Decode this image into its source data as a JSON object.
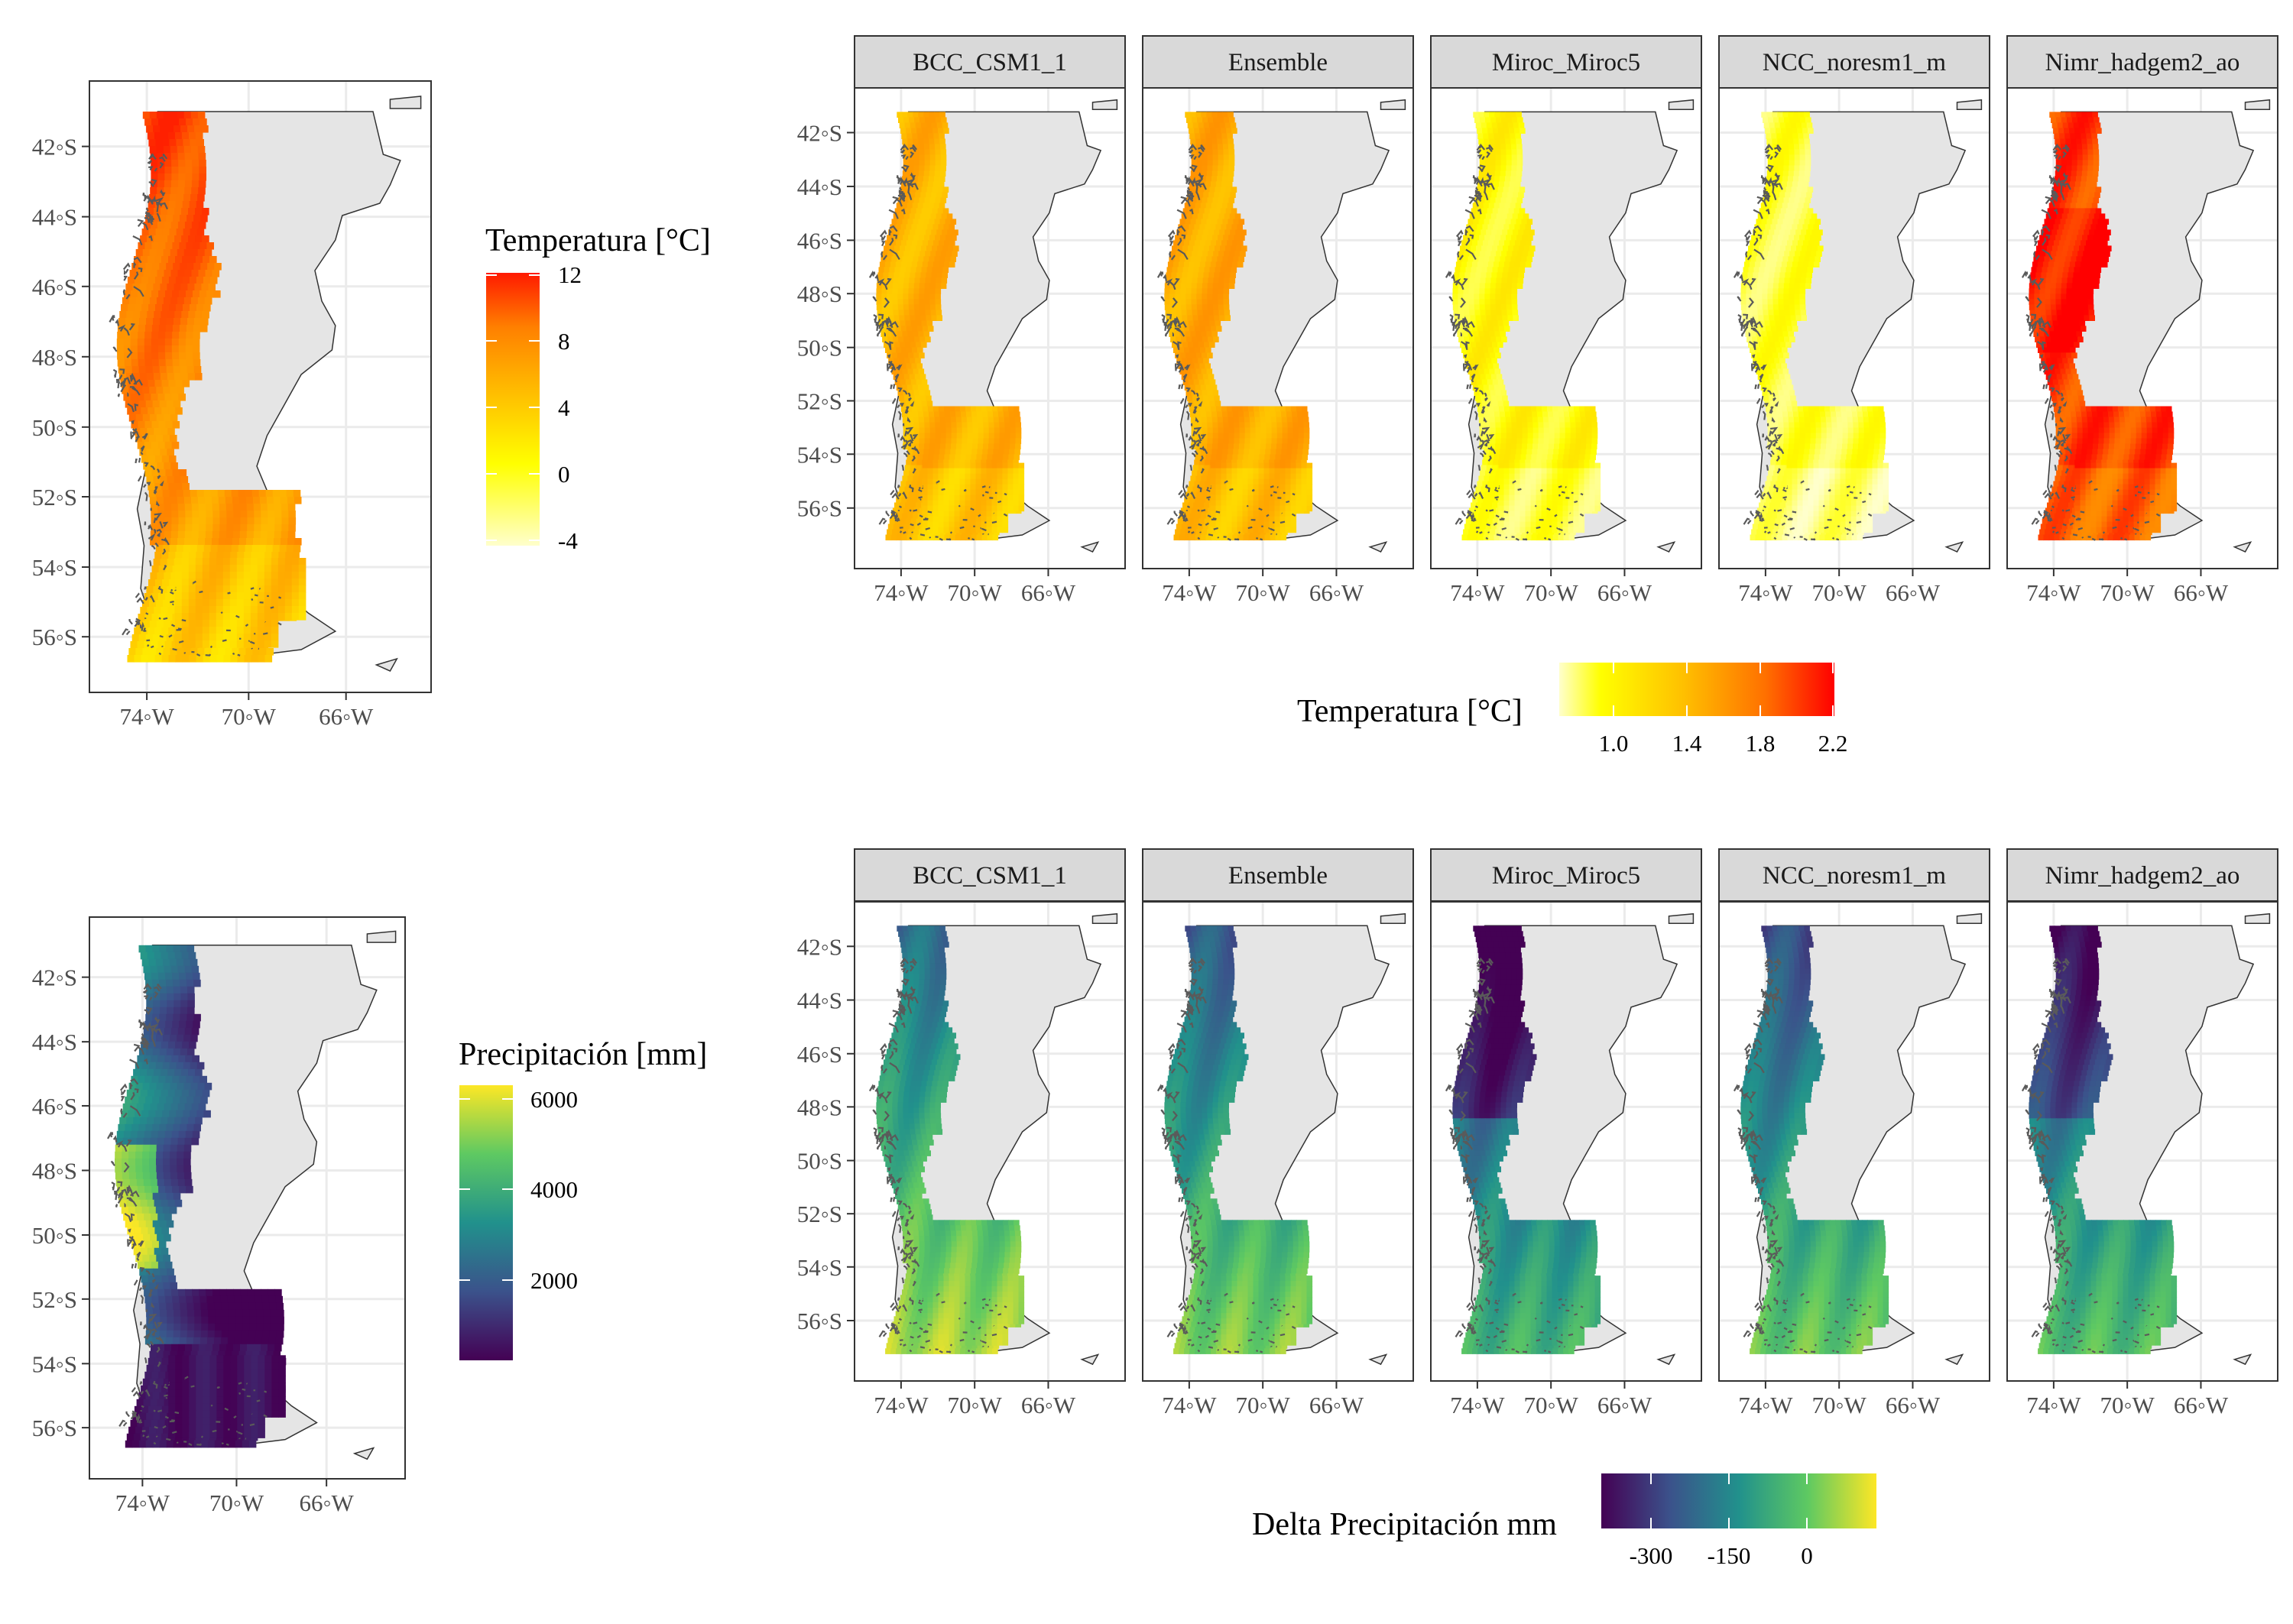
{
  "strip_labels": [
    "BCC_CSM1_1",
    "Ensemble",
    "Miroc_Miroc5",
    "NCC_noresm1_m",
    "Nimr_hadgem2_ao"
  ],
  "lat_labels": [
    "42◦S",
    "44◦S",
    "46◦S",
    "48◦S",
    "50◦S",
    "52◦S",
    "54◦S",
    "56◦S"
  ],
  "lon_labels": [
    "74◦W",
    "70◦W",
    "66◦W"
  ],
  "colors": {
    "land": "#e5e5e5",
    "coast": "#5a5a5a",
    "grid": "#ebebeb",
    "panel_border": "#333333",
    "strip_fill": "#d9d9d9"
  },
  "panels": {
    "temp_base": {
      "legend": {
        "title": "Temperatura [°C]",
        "labels": [
          "12",
          "8",
          "4",
          "0",
          "-4"
        ]
      },
      "palette": [
        "#ffffcc",
        "#ffff00",
        "#ffc000",
        "#ff8000",
        "#ff2000"
      ]
    },
    "temp_delta": {
      "legend": {
        "title": "Temperatura [°C]",
        "labels": [
          "1.0",
          "1.4",
          "1.8",
          "2.2"
        ]
      },
      "palette": [
        "#ffffcc",
        "#ffff00",
        "#ffc000",
        "#ff8000",
        "#ff0000"
      ]
    },
    "precip_base": {
      "legend": {
        "title": "Precipitación [mm]",
        "labels": [
          "6000",
          "4000",
          "2000"
        ]
      },
      "palette": [
        "#440154",
        "#3b528b",
        "#21918c",
        "#5ec962",
        "#fde725"
      ]
    },
    "precip_delta": {
      "legend": {
        "title": "Delta Precipitación mm",
        "labels": [
          "-300",
          "-150",
          "0"
        ]
      },
      "palette": [
        "#440154",
        "#3b528b",
        "#21918c",
        "#5ec962",
        "#fde725"
      ]
    }
  }
}
